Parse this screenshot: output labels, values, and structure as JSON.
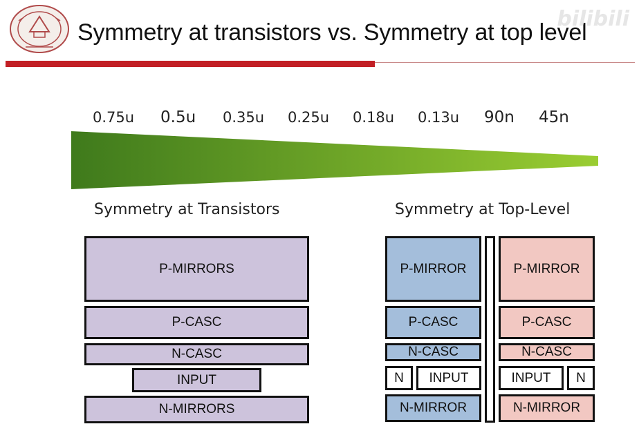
{
  "header": {
    "title": "Symmetry at transistors vs. Symmetry at top level",
    "watermark": "bilibili",
    "logo": {
      "name": "university-seal",
      "text": "TIANJIN UNIVERSITY (PEIYANG UNIVERSITY)"
    }
  },
  "scale": {
    "nodes": [
      "0.75u",
      "0.5u",
      "0.35u",
      "0.25u",
      "0.18u",
      "0.13u",
      "90n",
      "45n"
    ],
    "gradient_colors": [
      "#3f7a1c",
      "#9acd32"
    ]
  },
  "left_diagram": {
    "heading": "Symmetry at Transistors",
    "blocks": {
      "p_mirrors": "P-MIRRORS",
      "p_casc": "P-CASC",
      "n_casc": "N-CASC",
      "input": "INPUT",
      "n_mirrors": "N-MIRRORS"
    },
    "color": "#cdc3dc"
  },
  "right_diagram": {
    "heading": "Symmetry at Top-Level",
    "left_half": {
      "p_mirror": "P-MIRROR",
      "p_casc": "P-CASC",
      "n_casc": "N-CASC",
      "n": "N",
      "input": "INPUT",
      "n_mirror": "N-MIRROR",
      "color": "#a4bedb"
    },
    "right_half": {
      "p_mirror": "P-MIRROR",
      "p_casc": "P-CASC",
      "n_casc": "N-CASC",
      "input": "INPUT",
      "n": "N",
      "n_mirror": "N-MIRROR",
      "color": "#f2c8c2"
    }
  }
}
